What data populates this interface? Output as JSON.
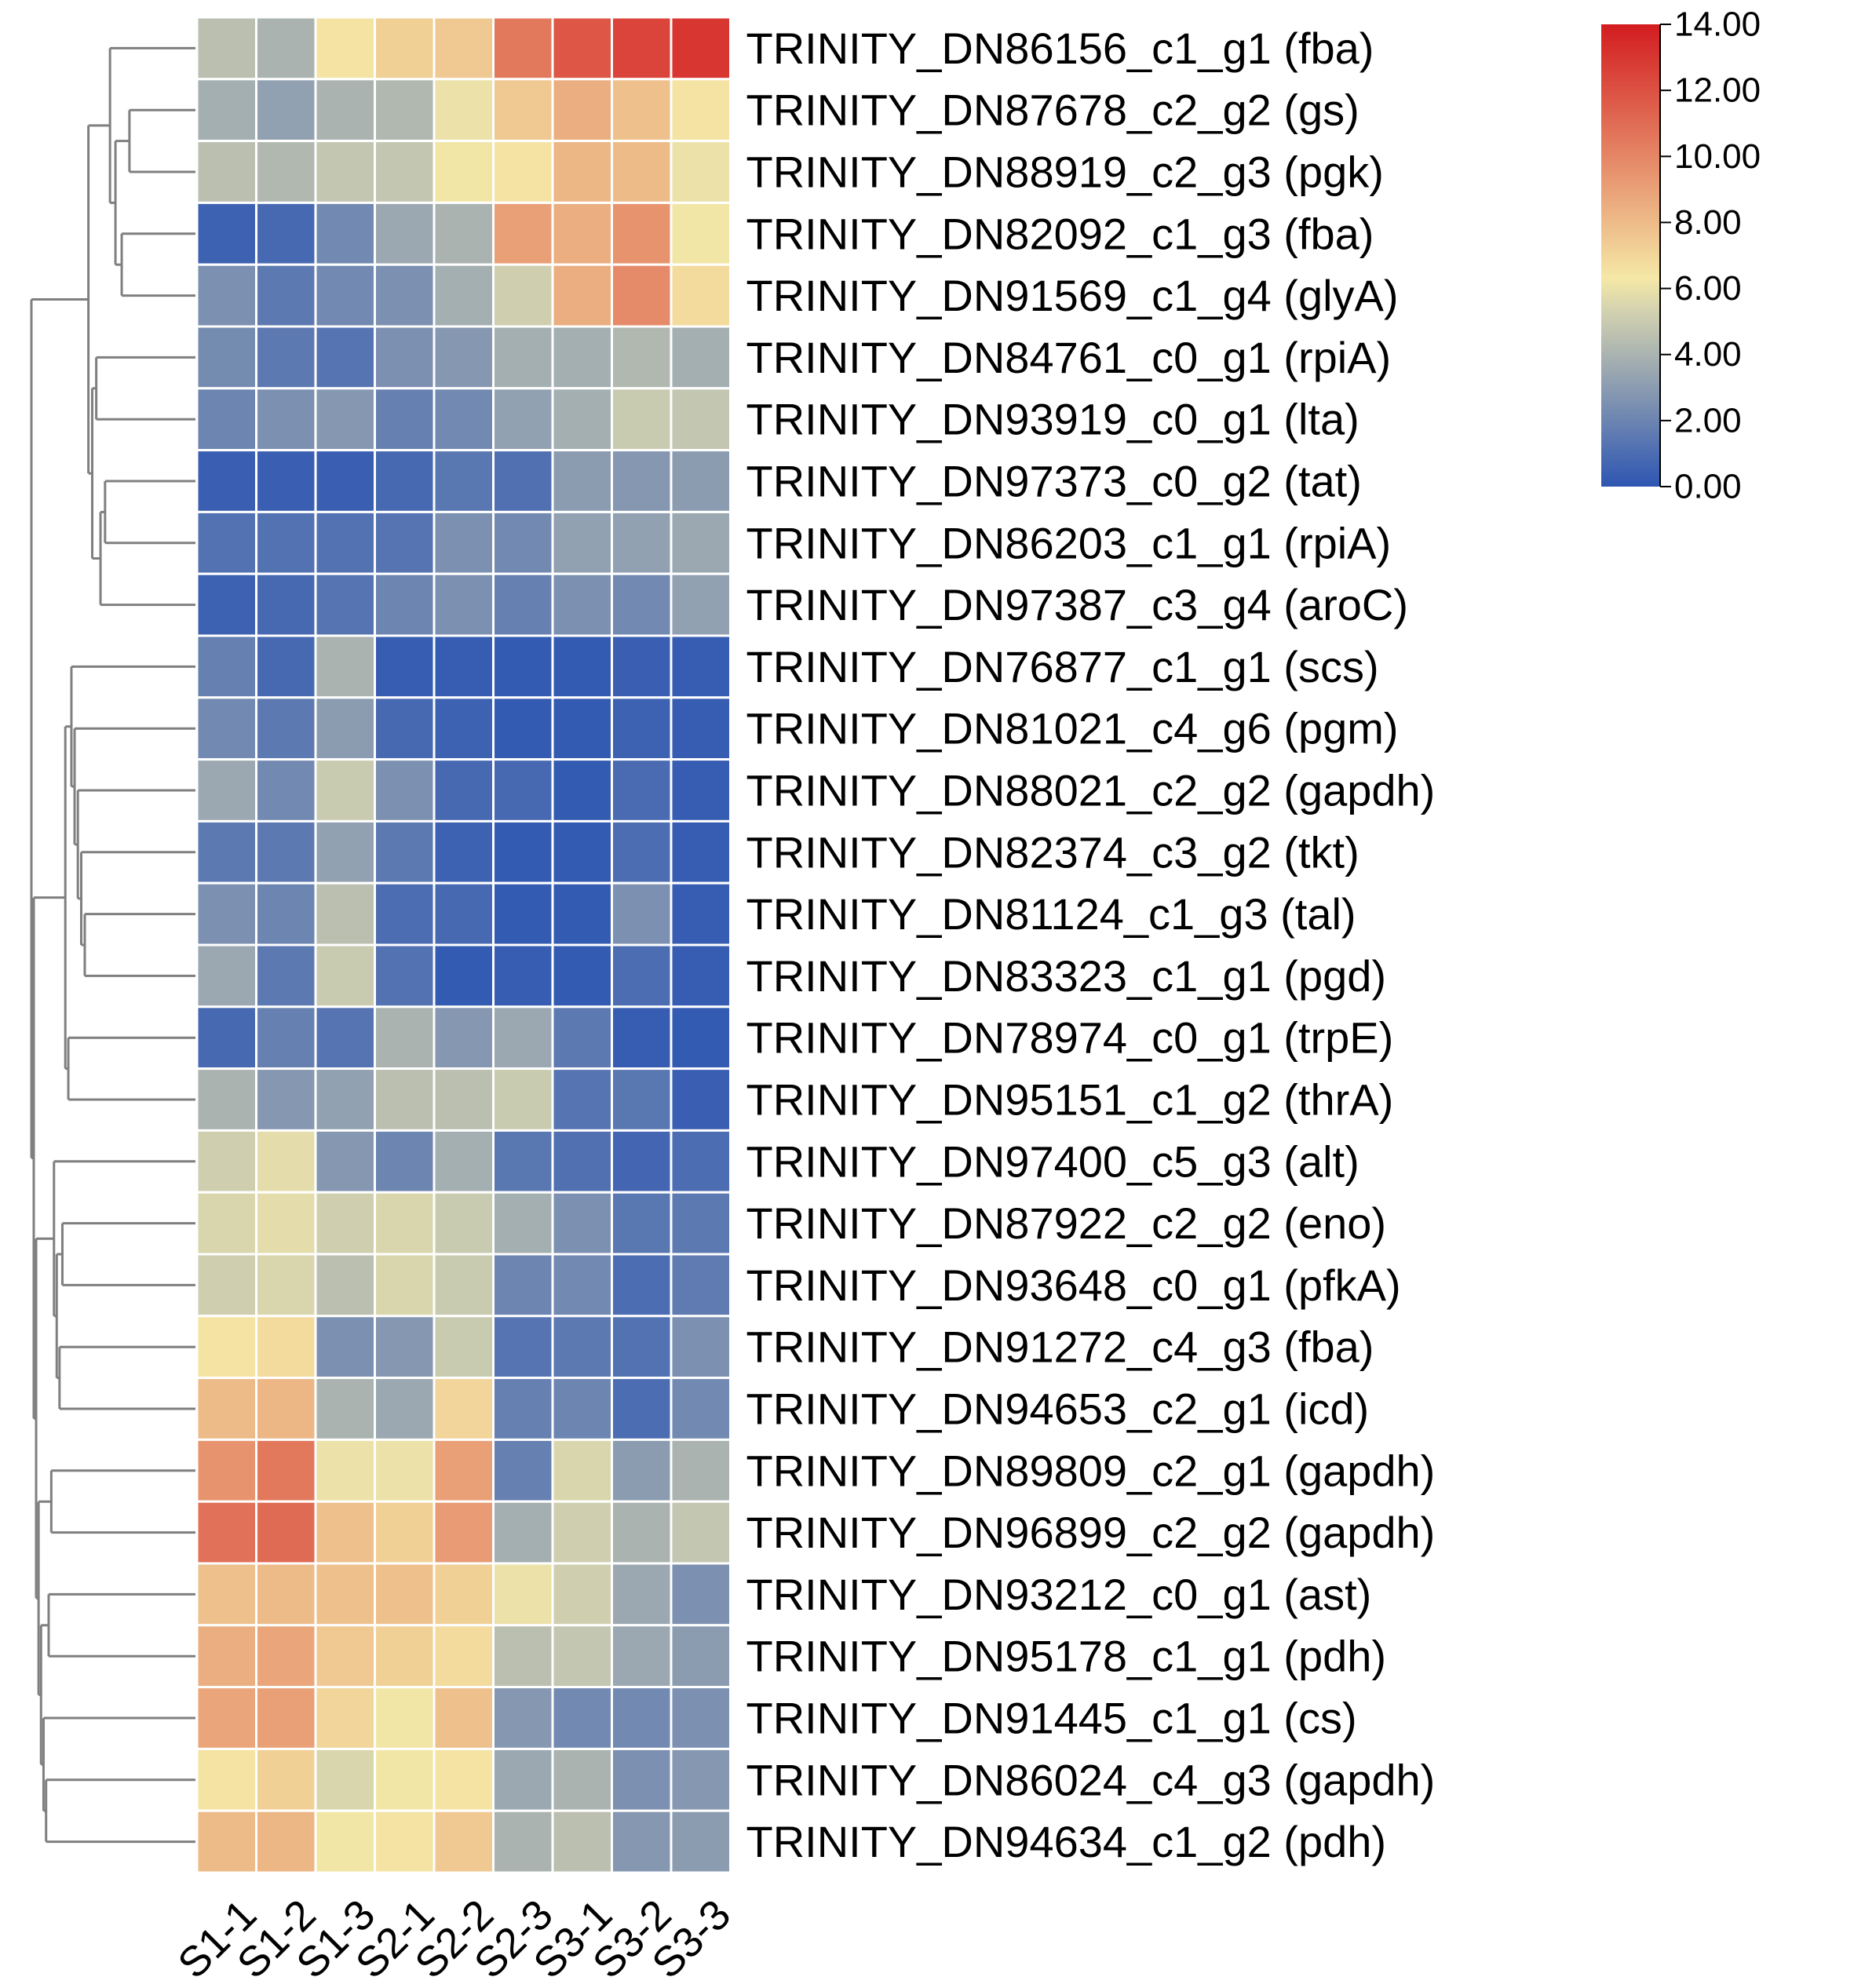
{
  "chart_data": {
    "type": "heatmap",
    "title": "",
    "columns": [
      "S1-1",
      "S1-2",
      "S1-3",
      "S2-1",
      "S2-2",
      "S2-3",
      "S3-1",
      "S3-2",
      "S3-3"
    ],
    "rows": [
      "TRINITY_DN86156_c1_g1 (fba)",
      "TRINITY_DN87678_c2_g2 (gs)",
      "TRINITY_DN88919_c2_g3 (pgk)",
      "TRINITY_DN82092_c1_g3 (fba)",
      "TRINITY_DN91569_c1_g4 (glyA)",
      "TRINITY_DN84761_c0_g1 (rpiA)",
      "TRINITY_DN93919_c0_g1 (lta)",
      "TRINITY_DN97373_c0_g2 (tat)",
      "TRINITY_DN86203_c1_g1 (rpiA)",
      "TRINITY_DN97387_c3_g4 (aroC)",
      "TRINITY_DN76877_c1_g1 (scs)",
      "TRINITY_DN81021_c4_g6 (pgm)",
      "TRINITY_DN88021_c2_g2 (gapdh)",
      "TRINITY_DN82374_c3_g2 (tkt)",
      "TRINITY_DN81124_c1_g3 (tal)",
      "TRINITY_DN83323_c1_g1 (pgd)",
      "TRINITY_DN78974_c0_g1 (trpE)",
      "TRINITY_DN95151_c1_g2 (thrA)",
      "TRINITY_DN97400_c5_g3 (alt)",
      "TRINITY_DN87922_c2_g2 (eno)",
      "TRINITY_DN93648_c0_g1 (pfkA)",
      "TRINITY_DN91272_c4_g3 (fba)",
      "TRINITY_DN94653_c2_g1 (icd)",
      "TRINITY_DN89809_c2_g1 (gapdh)",
      "TRINITY_DN96899_c2_g2 (gapdh)",
      "TRINITY_DN93212_c0_g1 (ast)",
      "TRINITY_DN95178_c1_g1 (pdh)",
      "TRINITY_DN91445_c1_g1 (cs)",
      "TRINITY_DN86024_c4_g3 (gapdh)",
      "TRINITY_DN94634_c1_g2 (pdh)"
    ],
    "values": [
      [
        4.5,
        4.0,
        6.5,
        7.2,
        7.5,
        10.5,
        11.8,
        12.5,
        13.0
      ],
      [
        3.8,
        3.2,
        4.0,
        4.2,
        6.0,
        7.5,
        8.5,
        7.8,
        6.5
      ],
      [
        4.5,
        4.2,
        4.8,
        4.8,
        6.2,
        6.5,
        8.2,
        8.0,
        6.0
      ],
      [
        0.5,
        0.8,
        2.2,
        3.5,
        4.0,
        9.0,
        8.5,
        9.5,
        6.2
      ],
      [
        2.5,
        1.5,
        2.2,
        2.5,
        3.8,
        5.2,
        8.5,
        9.8,
        6.8
      ],
      [
        2.3,
        1.5,
        1.3,
        2.5,
        2.8,
        3.8,
        3.8,
        4.2,
        3.8
      ],
      [
        2.0,
        2.5,
        2.8,
        1.8,
        2.2,
        3.2,
        3.8,
        5.0,
        4.8
      ],
      [
        0.4,
        0.4,
        0.4,
        0.8,
        1.4,
        1.1,
        3.0,
        2.8,
        3.0
      ],
      [
        1.2,
        1.2,
        1.2,
        1.3,
        2.5,
        2.2,
        3.2,
        3.2,
        3.5
      ],
      [
        0.5,
        0.8,
        1.3,
        2.0,
        2.5,
        1.8,
        2.5,
        2.2,
        3.2
      ],
      [
        1.8,
        0.8,
        4.0,
        0.3,
        0.3,
        0.2,
        0.2,
        0.4,
        0.3
      ],
      [
        2.2,
        1.5,
        3.0,
        0.8,
        0.5,
        0.2,
        0.2,
        0.5,
        0.3
      ],
      [
        3.5,
        2.2,
        5.0,
        2.5,
        0.8,
        0.8,
        0.2,
        0.9,
        0.3
      ],
      [
        1.5,
        1.5,
        3.2,
        1.5,
        0.5,
        0.2,
        0.2,
        1.0,
        0.3
      ],
      [
        2.5,
        2.0,
        4.5,
        1.0,
        0.8,
        0.2,
        0.2,
        2.5,
        0.3
      ],
      [
        3.5,
        1.5,
        5.0,
        1.2,
        0.2,
        0.3,
        0.2,
        1.0,
        0.3
      ],
      [
        0.8,
        1.8,
        1.3,
        4.0,
        2.8,
        3.5,
        1.5,
        0.3,
        0.2
      ],
      [
        4.0,
        2.8,
        3.2,
        4.5,
        4.5,
        5.0,
        1.3,
        1.4,
        0.4
      ],
      [
        5.2,
        5.8,
        2.8,
        2.0,
        3.8,
        1.4,
        1.1,
        0.7,
        1.0
      ],
      [
        5.5,
        5.8,
        5.2,
        5.5,
        5.0,
        3.8,
        2.5,
        1.4,
        1.5
      ],
      [
        5.2,
        5.5,
        4.5,
        5.5,
        5.0,
        2.0,
        2.2,
        1.0,
        1.6
      ],
      [
        6.5,
        6.8,
        2.5,
        2.8,
        5.0,
        1.3,
        1.5,
        1.2,
        2.5
      ],
      [
        8.0,
        8.2,
        4.0,
        3.5,
        7.0,
        1.8,
        2.0,
        1.0,
        2.2
      ],
      [
        9.5,
        10.5,
        6.0,
        6.0,
        9.0,
        1.8,
        5.5,
        3.0,
        4.0
      ],
      [
        10.8,
        11.0,
        7.8,
        7.2,
        9.2,
        3.8,
        5.2,
        4.0,
        4.8
      ],
      [
        7.8,
        8.0,
        7.8,
        7.8,
        7.2,
        6.0,
        5.2,
        3.5,
        2.5
      ],
      [
        8.5,
        8.8,
        7.5,
        7.2,
        6.8,
        4.5,
        4.8,
        3.5,
        3.0
      ],
      [
        8.8,
        9.0,
        7.0,
        6.2,
        7.8,
        2.8,
        2.2,
        2.2,
        2.5
      ],
      [
        6.5,
        7.2,
        5.5,
        6.2,
        6.5,
        3.5,
        4.0,
        2.5,
        2.8
      ],
      [
        8.0,
        8.2,
        6.2,
        6.5,
        7.5,
        4.0,
        4.5,
        2.8,
        3.0
      ]
    ],
    "colorbar": {
      "min": 0,
      "max": 14,
      "ticks": [
        "0.00",
        "2.00",
        "4.00",
        "6.00",
        "8.00",
        "10.00",
        "12.00",
        "14.00"
      ],
      "tick_values": [
        0,
        2,
        4,
        6,
        8,
        10,
        12,
        14
      ],
      "colors": [
        "#2e56b2",
        "#d3d2b0",
        "#f5e8a6",
        "#d31c20"
      ],
      "color_stops": [
        0,
        0.38,
        0.45,
        1
      ],
      "placement": "top-right"
    },
    "dendrogram": {
      "side": "left",
      "line_color": "#7f7f7f",
      "merges": [
        [
          1,
          2
        ],
        [
          3,
          4
        ],
        [
          -1,
          -2
        ],
        [
          0,
          -3
        ],
        [
          7,
          8
        ],
        [
          -5,
          9
        ],
        [
          5,
          6
        ],
        [
          -7,
          -6
        ],
        [
          -4,
          -8
        ],
        [
          14,
          15
        ],
        [
          13,
          -10
        ],
        [
          12,
          -11
        ],
        [
          11,
          -12
        ],
        [
          10,
          -13
        ],
        [
          16,
          17
        ],
        [
          -14,
          -15
        ],
        [
          19,
          20
        ],
        [
          21,
          22
        ],
        [
          -17,
          -18
        ],
        [
          18,
          -19
        ],
        [
          23,
          24
        ],
        [
          25,
          26
        ],
        [
          28,
          29
        ],
        [
          27,
          -23
        ],
        [
          -22,
          -24
        ],
        [
          -21,
          -25
        ],
        [
          -20,
          -26
        ],
        [
          -16,
          -27
        ],
        [
          -9,
          -28
        ]
      ]
    }
  }
}
